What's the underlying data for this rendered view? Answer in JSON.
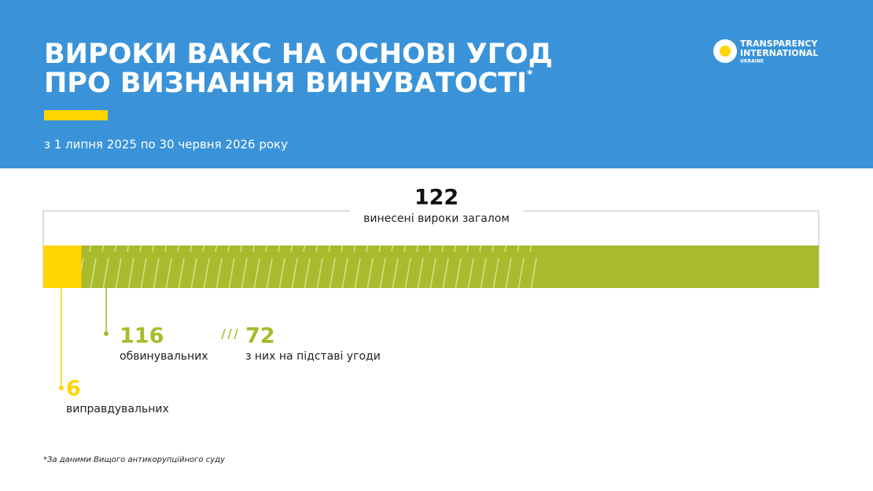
{
  "header": {
    "title_line1": "ВИРОКИ ВАКС НА ОСНОВІ УГОД",
    "title_line2": "ПРО ВИЗНАННЯ ВИНУВАТОСТІ",
    "title_mark": "*",
    "subtitle": "з 1 липня 2025 по 30 червня 2026 року",
    "logo": [
      "TRANSPARENCY",
      "INTERNATIONAL",
      "UKRAINE"
    ]
  },
  "chart_data": {
    "type": "bar",
    "total": {
      "value": 122,
      "label": "винесені вироки загалом"
    },
    "series": [
      {
        "name": "виправдувальних",
        "color": "#ffd400",
        "values": [
          6
        ]
      },
      {
        "name": "обвинувальних",
        "color": "#a8bb2c",
        "values": [
          116
        ]
      }
    ],
    "subset": {
      "name": "з них на підставі угоди",
      "value": 72,
      "color": "#c9d36a"
    }
  },
  "footnote": "*За даними Вищого антикорупційного суду"
}
